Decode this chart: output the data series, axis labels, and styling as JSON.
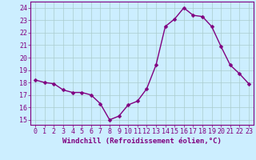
{
  "x": [
    0,
    1,
    2,
    3,
    4,
    5,
    6,
    7,
    8,
    9,
    10,
    11,
    12,
    13,
    14,
    15,
    16,
    17,
    18,
    19,
    20,
    21,
    22,
    23
  ],
  "y": [
    18.2,
    18.0,
    17.9,
    17.4,
    17.2,
    17.2,
    17.0,
    16.3,
    15.0,
    15.3,
    16.2,
    16.5,
    17.5,
    19.4,
    22.5,
    23.1,
    24.0,
    23.4,
    23.3,
    22.5,
    20.9,
    19.4,
    18.7,
    17.9
  ],
  "line_color": "#800080",
  "marker": "D",
  "marker_size": 2.5,
  "linewidth": 1.0,
  "bg_color": "#cceeff",
  "grid_color": "#aacccc",
  "xlabel": "Windchill (Refroidissement éolien,°C)",
  "xlabel_fontsize": 6.5,
  "tick_fontsize": 6.0,
  "yticks": [
    15,
    16,
    17,
    18,
    19,
    20,
    21,
    22,
    23,
    24
  ],
  "xticks": [
    0,
    1,
    2,
    3,
    4,
    5,
    6,
    7,
    8,
    9,
    10,
    11,
    12,
    13,
    14,
    15,
    16,
    17,
    18,
    19,
    20,
    21,
    22,
    23
  ],
  "ylim": [
    14.6,
    24.5
  ],
  "xlim": [
    -0.5,
    23.5
  ]
}
